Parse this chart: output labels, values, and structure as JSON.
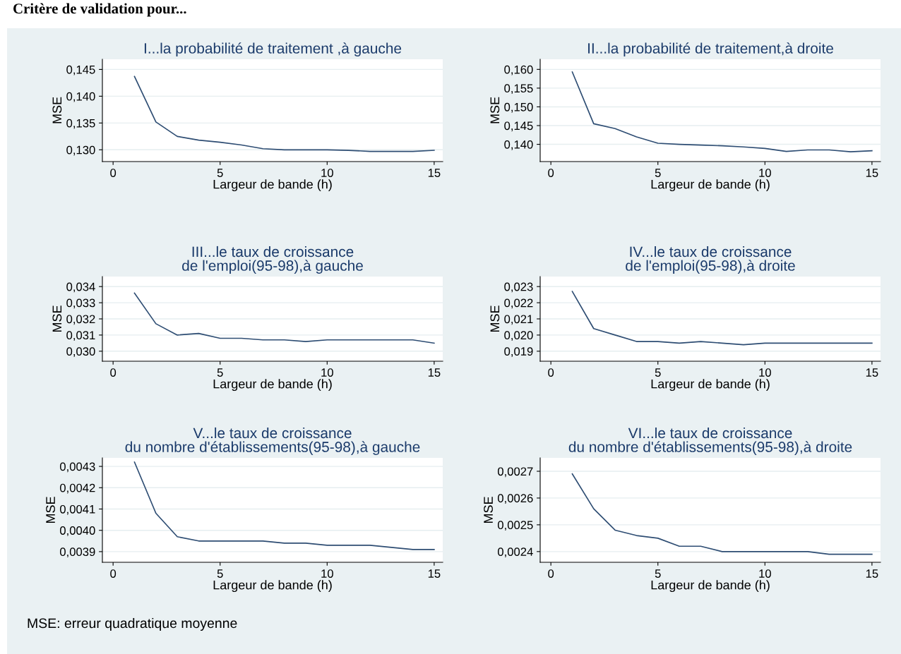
{
  "chart_data": [
    {
      "type": "line",
      "title": "I...la probabilité de traitement ,à gauche",
      "xlabel": "Largeur de bande (h)",
      "ylabel": "MSE",
      "annotations": [
        "Critère de validation pour..."
      ],
      "x": [
        1,
        2,
        3,
        4,
        5,
        6,
        7,
        8,
        9,
        10,
        11,
        12,
        13,
        14,
        15
      ],
      "series": [
        {
          "color": "#2e4d73",
          "values": [
            0.1437,
            0.1352,
            0.1325,
            0.1318,
            0.1314,
            0.1309,
            0.1302,
            0.13,
            0.13,
            0.13,
            0.1299,
            0.1297,
            0.1297,
            0.1297,
            0.1299
          ]
        }
      ],
      "xlim": [
        -0.5,
        15.4
      ],
      "xticks": [
        0,
        5,
        10,
        15
      ],
      "ylim": [
        0.1278,
        0.1469
      ],
      "yticks": [
        {
          "value": 0.13,
          "label": "0,130"
        },
        {
          "value": 0.135,
          "label": "0,135"
        },
        {
          "value": 0.14,
          "label": "0,140"
        },
        {
          "value": 0.145,
          "label": "0,145"
        }
      ],
      "grid": "y",
      "legend": false
    },
    {
      "type": "line",
      "title": "II...la probabilité de traitement,à droite",
      "xlabel": "Largeur de bande (h)",
      "ylabel": "MSE",
      "x": [
        1,
        2,
        3,
        4,
        5,
        6,
        7,
        8,
        9,
        10,
        11,
        12,
        13,
        14,
        15
      ],
      "series": [
        {
          "color": "#2e4d73",
          "values": [
            0.1593,
            0.1455,
            0.1442,
            0.142,
            0.1403,
            0.14,
            0.1398,
            0.1396,
            0.1393,
            0.1389,
            0.1381,
            0.1385,
            0.1385,
            0.138,
            0.1383
          ]
        }
      ],
      "xlim": [
        -0.5,
        15.4
      ],
      "xticks": [
        0,
        5,
        10,
        15
      ],
      "ylim": [
        0.1354,
        0.1627
      ],
      "yticks": [
        {
          "value": 0.14,
          "label": "0,140"
        },
        {
          "value": 0.145,
          "label": "0,145"
        },
        {
          "value": 0.15,
          "label": "0,150"
        },
        {
          "value": 0.155,
          "label": "0,155"
        },
        {
          "value": 0.16,
          "label": "0,160"
        }
      ],
      "grid": "y",
      "legend": false
    },
    {
      "type": "line",
      "title": "III...le taux de croissance\nde l'emploi(95-98),à gauche",
      "xlabel": "Largeur de bande (h)",
      "ylabel": "MSE",
      "x": [
        1,
        2,
        3,
        4,
        5,
        6,
        7,
        8,
        9,
        10,
        11,
        12,
        13,
        14,
        15
      ],
      "series": [
        {
          "color": "#2e4d73",
          "values": [
            0.0336,
            0.0317,
            0.031,
            0.0311,
            0.0308,
            0.0308,
            0.0307,
            0.0307,
            0.0306,
            0.0307,
            0.0307,
            0.0307,
            0.0307,
            0.0307,
            0.0305
          ]
        }
      ],
      "xlim": [
        -0.5,
        15.4
      ],
      "xticks": [
        0,
        5,
        10,
        15
      ],
      "ylim": [
        0.02938,
        0.03462
      ],
      "yticks": [
        {
          "value": 0.03,
          "label": "0,030"
        },
        {
          "value": 0.031,
          "label": "0,031"
        },
        {
          "value": 0.032,
          "label": "0,032"
        },
        {
          "value": 0.033,
          "label": "0,033"
        },
        {
          "value": 0.034,
          "label": "0,034"
        }
      ],
      "grid": "y",
      "legend": false
    },
    {
      "type": "line",
      "title": "IV...le taux de croissance\nde l'emploi(95-98),à droite",
      "xlabel": "Largeur de bande (h)",
      "ylabel": "MSE",
      "x": [
        1,
        2,
        3,
        4,
        5,
        6,
        7,
        8,
        9,
        10,
        11,
        12,
        13,
        14,
        15
      ],
      "series": [
        {
          "color": "#2e4d73",
          "values": [
            0.0227,
            0.0204,
            0.02,
            0.0196,
            0.0196,
            0.0195,
            0.0196,
            0.0195,
            0.0194,
            0.0195,
            0.0195,
            0.0195,
            0.0195,
            0.0195,
            0.0195
          ]
        }
      ],
      "xlim": [
        -0.5,
        15.4
      ],
      "xticks": [
        0,
        5,
        10,
        15
      ],
      "ylim": [
        0.01838,
        0.02362
      ],
      "yticks": [
        {
          "value": 0.019,
          "label": "0,019"
        },
        {
          "value": 0.02,
          "label": "0,020"
        },
        {
          "value": 0.021,
          "label": "0,021"
        },
        {
          "value": 0.022,
          "label": "0,022"
        },
        {
          "value": 0.023,
          "label": "0,023"
        }
      ],
      "grid": "y",
      "legend": false
    },
    {
      "type": "line",
      "title": "V...le taux de croissance\ndu nombre d'établissements(95-98),à gauche",
      "xlabel": "Largeur de bande (h)",
      "ylabel": "MSE",
      "x": [
        1,
        2,
        3,
        4,
        5,
        6,
        7,
        8,
        9,
        10,
        11,
        12,
        13,
        14,
        15
      ],
      "series": [
        {
          "color": "#2e4d73",
          "values": [
            0.00432,
            0.00408,
            0.00397,
            0.00395,
            0.00395,
            0.00395,
            0.00395,
            0.00394,
            0.00394,
            0.00393,
            0.00393,
            0.00393,
            0.00392,
            0.00391,
            0.00391
          ]
        }
      ],
      "xlim": [
        -0.5,
        15.4
      ],
      "xticks": [
        0,
        5,
        10,
        15
      ],
      "ylim": [
        0.00385,
        0.00434
      ],
      "yticks": [
        {
          "value": 0.0039,
          "label": "0,0039"
        },
        {
          "value": 0.004,
          "label": "0,0040"
        },
        {
          "value": 0.0041,
          "label": "0,0041"
        },
        {
          "value": 0.0042,
          "label": "0,0042"
        },
        {
          "value": 0.0043,
          "label": "0,0043"
        }
      ],
      "grid": "y",
      "legend": false
    },
    {
      "type": "line",
      "title": "VI...le taux de croissance\ndu nombre d'établissements(95-98),à droite",
      "xlabel": "Largeur de bande (h)",
      "ylabel": "MSE",
      "annotations": [
        "MSE: erreur quadratique moyenne"
      ],
      "x": [
        1,
        2,
        3,
        4,
        5,
        6,
        7,
        8,
        9,
        10,
        11,
        12,
        13,
        14,
        15
      ],
      "series": [
        {
          "color": "#2e4d73",
          "values": [
            0.00269,
            0.00256,
            0.00248,
            0.00246,
            0.00245,
            0.00242,
            0.00242,
            0.0024,
            0.0024,
            0.0024,
            0.0024,
            0.0024,
            0.00239,
            0.00239,
            0.00239
          ]
        }
      ],
      "xlim": [
        -0.5,
        15.4
      ],
      "xticks": [
        0,
        5,
        10,
        15
      ],
      "ylim": [
        0.00236,
        0.00275
      ],
      "yticks": [
        {
          "value": 0.0024,
          "label": "0,0024"
        },
        {
          "value": 0.0025,
          "label": "0,0025"
        },
        {
          "value": 0.0026,
          "label": "0,0026"
        },
        {
          "value": 0.0027,
          "label": "0,0027"
        }
      ],
      "grid": "y",
      "legend": false
    }
  ]
}
